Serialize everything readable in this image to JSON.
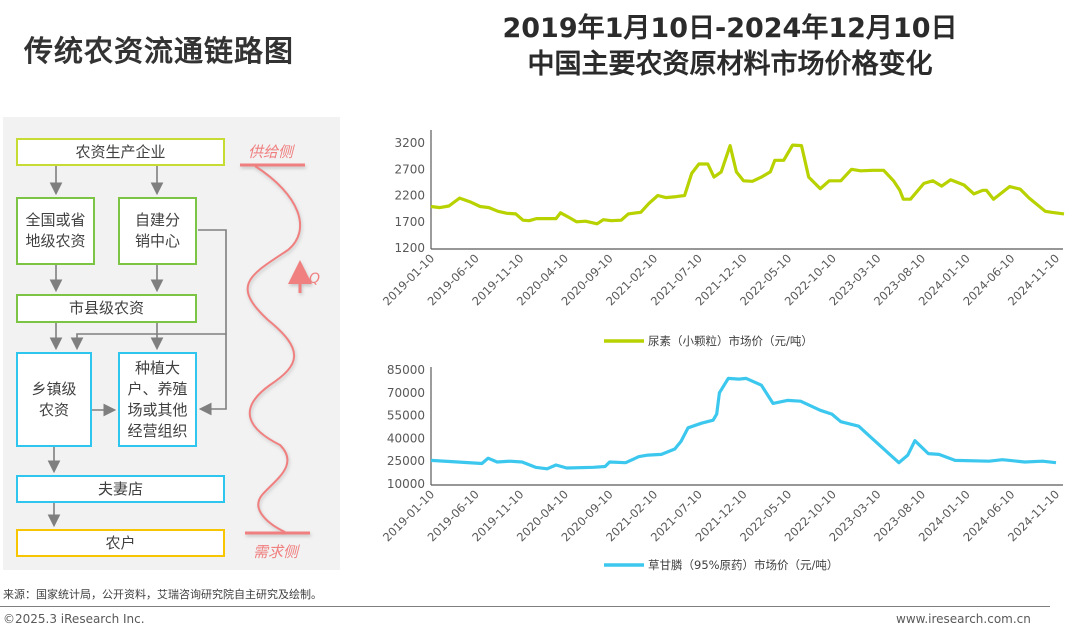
{
  "left": {
    "title": "传统农资流通链路图",
    "nodes": {
      "producer": "农资生产企业",
      "national": "全国或省地级农资",
      "self_built": "自建分销中心",
      "county": "市县级农资",
      "township": "乡镇级农资",
      "large_grower": "种植大户、养殖场或其他经营组织",
      "couple_store": "夫妻店",
      "farmer": "农户"
    },
    "supply_label": "供给侧",
    "demand_label": "需求侧",
    "q_label": "Q",
    "colors": {
      "producer": "#c6dc33",
      "mid": "#7cc444",
      "low": "#2ec5ee",
      "farmer": "#f7c600",
      "wave": "#f08080"
    }
  },
  "right": {
    "title_line1": "2019年1月10日-2024年12月10日",
    "title_line2": "中国主要农资原材料市场价格变化"
  },
  "chart_data": [
    {
      "type": "line",
      "title": "",
      "x_unit": "months since 2019-01-10",
      "x_ticks": [
        "2019-01-10",
        "2019-06-10",
        "2019-11-10",
        "2020-04-10",
        "2020-09-10",
        "2021-02-10",
        "2021-07-10",
        "2021-12-10",
        "2022-05-10",
        "2022-10-10",
        "2023-03-10",
        "2023-08-10",
        "2024-01-10",
        "2024-06-10",
        "2024-11-10"
      ],
      "y_ticks": [
        "1200",
        "1700",
        "2200",
        "2700",
        "3200"
      ],
      "ylim": [
        1200,
        3480
      ],
      "grid": false,
      "legend": "bottom",
      "series": [
        {
          "name": "尿素（小颗粒）市场价（元/吨）",
          "color": "#b8d200",
          "points": [
            [
              0,
              1990
            ],
            [
              1,
              1970
            ],
            [
              2,
              2000
            ],
            [
              3.2,
              2150
            ],
            [
              4.5,
              2070
            ],
            [
              5.5,
              1990
            ],
            [
              6.5,
              1970
            ],
            [
              7.5,
              1900
            ],
            [
              8.5,
              1860
            ],
            [
              9.5,
              1850
            ],
            [
              10.3,
              1730
            ],
            [
              11,
              1720
            ],
            [
              11.8,
              1760
            ],
            [
              13,
              1760
            ],
            [
              14,
              1760
            ],
            [
              14.5,
              1870
            ],
            [
              15.5,
              1780
            ],
            [
              16.3,
              1700
            ],
            [
              17.3,
              1710
            ],
            [
              18.6,
              1660
            ],
            [
              19.3,
              1740
            ],
            [
              20.2,
              1720
            ],
            [
              21.3,
              1730
            ],
            [
              22.1,
              1850
            ],
            [
              23.5,
              1880
            ],
            [
              24.4,
              2050
            ],
            [
              25.4,
              2200
            ],
            [
              26.3,
              2160
            ],
            [
              27.5,
              2180
            ],
            [
              28.4,
              2200
            ],
            [
              29.2,
              2620
            ],
            [
              30,
              2800
            ],
            [
              31,
              2800
            ],
            [
              31.7,
              2550
            ],
            [
              32.5,
              2650
            ],
            [
              33.5,
              3150
            ],
            [
              34.2,
              2650
            ],
            [
              35,
              2480
            ],
            [
              36,
              2470
            ],
            [
              37,
              2550
            ],
            [
              38,
              2650
            ],
            [
              38.5,
              2870
            ],
            [
              39.5,
              2870
            ],
            [
              40.5,
              3160
            ],
            [
              41.5,
              3150
            ],
            [
              42.3,
              2550
            ],
            [
              43.6,
              2330
            ],
            [
              44.6,
              2480
            ],
            [
              45.9,
              2480
            ],
            [
              47.1,
              2700
            ],
            [
              48.1,
              2670
            ],
            [
              49.5,
              2680
            ],
            [
              50.7,
              2680
            ],
            [
              51.8,
              2480
            ],
            [
              52.5,
              2300
            ],
            [
              52.9,
              2130
            ],
            [
              53.7,
              2130
            ],
            [
              55.2,
              2430
            ],
            [
              56.2,
              2480
            ],
            [
              57.2,
              2380
            ],
            [
              58.2,
              2500
            ],
            [
              59.7,
              2400
            ],
            [
              60.8,
              2230
            ],
            [
              61.8,
              2300
            ],
            [
              62.2,
              2300
            ],
            [
              63,
              2130
            ],
            [
              64.8,
              2370
            ],
            [
              66,
              2320
            ],
            [
              67,
              2150
            ],
            [
              68.8,
              1900
            ],
            [
              69.5,
              1880
            ],
            [
              70.9,
              1850
            ]
          ]
        }
      ]
    },
    {
      "type": "line",
      "title": "",
      "x_unit": "months since 2019-01-10",
      "x_ticks": [
        "2019-01-10",
        "2019-06-10",
        "2019-11-10",
        "2020-04-10",
        "2020-09-10",
        "2021-02-10",
        "2021-07-10",
        "2021-12-10",
        "2022-05-10",
        "2022-10-10",
        "2023-03-10",
        "2023-08-10",
        "2024-01-10",
        "2024-06-10",
        "2024-11-10"
      ],
      "y_ticks": [
        "10000",
        "25000",
        "40000",
        "55000",
        "70000",
        "85000"
      ],
      "ylim": [
        10000,
        86000
      ],
      "grid": false,
      "legend": "bottom",
      "series": [
        {
          "name": "草甘膦（95%原药）市场价（元/吨）",
          "color": "#3cc8ee",
          "points": [
            [
              0,
              25500
            ],
            [
              3,
              24500
            ],
            [
              5.7,
              23500
            ],
            [
              6.4,
              27000
            ],
            [
              7.4,
              24500
            ],
            [
              8.8,
              25000
            ],
            [
              10.2,
              24500
            ],
            [
              11.7,
              21000
            ],
            [
              13,
              20000
            ],
            [
              14,
              22500
            ],
            [
              15.2,
              20500
            ],
            [
              18.2,
              21000
            ],
            [
              19.5,
              21500
            ],
            [
              20,
              24500
            ],
            [
              21.8,
              24000
            ],
            [
              23.3,
              28000
            ],
            [
              24.3,
              29000
            ],
            [
              25.8,
              29500
            ],
            [
              27.3,
              33000
            ],
            [
              28,
              38000
            ],
            [
              28.8,
              47000
            ],
            [
              30.3,
              50000
            ],
            [
              31.6,
              52000
            ],
            [
              32,
              56000
            ],
            [
              32.3,
              70000
            ],
            [
              33.3,
              79500
            ],
            [
              34.5,
              79000
            ],
            [
              35.3,
              79500
            ],
            [
              37,
              75000
            ],
            [
              38.3,
              63000
            ],
            [
              39.9,
              65000
            ],
            [
              41.4,
              64500
            ],
            [
              43.6,
              58500
            ],
            [
              44.9,
              56000
            ],
            [
              45.9,
              51000
            ],
            [
              47.9,
              48000
            ],
            [
              49.4,
              40000
            ],
            [
              50.9,
              32000
            ],
            [
              52.4,
              24000
            ],
            [
              53.4,
              29000
            ],
            [
              54.2,
              38500
            ],
            [
              55.7,
              30000
            ],
            [
              56.9,
              29500
            ],
            [
              58.7,
              25500
            ],
            [
              62.5,
              25000
            ],
            [
              64,
              26000
            ],
            [
              66.5,
              24500
            ],
            [
              68.5,
              25000
            ],
            [
              70,
              24000
            ]
          ]
        }
      ]
    }
  ],
  "footer": {
    "source": "来源：国家统计局，公开资料，艾瑞咨询研究院自主研究及绘制。",
    "copyright": "©2025.3 iResearch Inc.",
    "website": "www.iresearch.com.cn"
  }
}
